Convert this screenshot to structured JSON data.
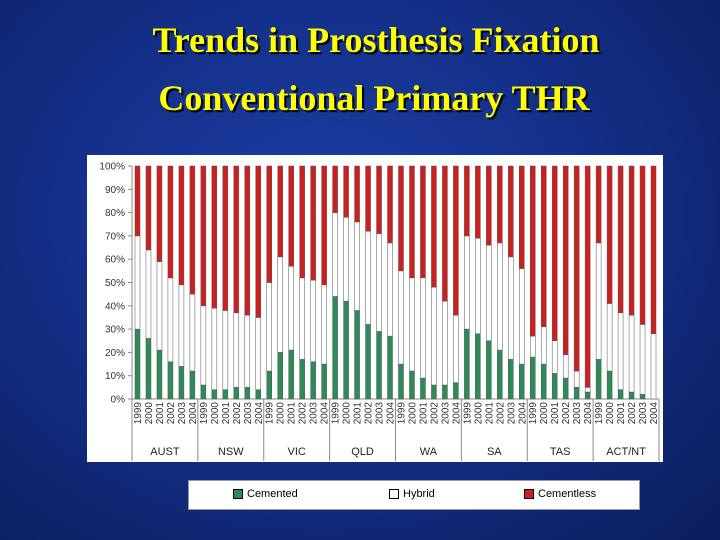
{
  "slide": {
    "title_line1": "Trends in Prosthesis Fixation",
    "title_line2": "Conventional Primary THR"
  },
  "chart_data": {
    "type": "bar",
    "stacked": true,
    "percent": true,
    "title": "",
    "xlabel": "",
    "ylabel": "",
    "ylim": [
      0,
      100
    ],
    "yticks": [
      "0%",
      "10%",
      "20%",
      "30%",
      "40%",
      "50%",
      "60%",
      "70%",
      "80%",
      "90%",
      "100%"
    ],
    "years": [
      "1999",
      "2000",
      "2001",
      "2002",
      "2003",
      "2004"
    ],
    "groups": [
      {
        "name": "AUST",
        "cemented": [
          30,
          26,
          21,
          16,
          14,
          12
        ],
        "hybrid": [
          40,
          38,
          38,
          36,
          35,
          33
        ],
        "cementless": [
          30,
          36,
          41,
          48,
          51,
          55
        ]
      },
      {
        "name": "NSW",
        "cemented": [
          6,
          4,
          4,
          5,
          5,
          4
        ],
        "hybrid": [
          34,
          35,
          34,
          32,
          31,
          31
        ],
        "cementless": [
          60,
          61,
          62,
          63,
          64,
          65
        ]
      },
      {
        "name": "VIC",
        "cemented": [
          12,
          20,
          21,
          17,
          16,
          15
        ],
        "hybrid": [
          38,
          41,
          36,
          35,
          35,
          34
        ],
        "cementless": [
          50,
          39,
          43,
          48,
          49,
          51
        ]
      },
      {
        "name": "QLD",
        "cemented": [
          44,
          42,
          38,
          32,
          29,
          27
        ],
        "hybrid": [
          36,
          36,
          38,
          40,
          42,
          40
        ],
        "cementless": [
          20,
          22,
          24,
          28,
          29,
          33
        ]
      },
      {
        "name": "WA",
        "cemented": [
          15,
          12,
          9,
          6,
          6,
          7
        ],
        "hybrid": [
          40,
          40,
          43,
          42,
          36,
          29
        ],
        "cementless": [
          45,
          48,
          48,
          52,
          58,
          64
        ]
      },
      {
        "name": "SA",
        "cemented": [
          30,
          28,
          25,
          21,
          17,
          15
        ],
        "hybrid": [
          40,
          41,
          41,
          46,
          44,
          41
        ],
        "cementless": [
          30,
          31,
          34,
          33,
          39,
          44
        ]
      },
      {
        "name": "TAS",
        "cemented": [
          18,
          15,
          11,
          9,
          5,
          3
        ],
        "hybrid": [
          9,
          16,
          14,
          10,
          7,
          2
        ],
        "cementless": [
          73,
          69,
          75,
          81,
          88,
          95
        ]
      },
      {
        "name": "ACT/NT",
        "cemented": [
          17,
          12,
          4,
          3,
          2,
          0
        ],
        "hybrid": [
          50,
          29,
          33,
          33,
          30,
          28
        ],
        "cementless": [
          33,
          59,
          63,
          64,
          68,
          72
        ]
      }
    ],
    "series": [
      {
        "name": "Cemented",
        "color": "#2e8b57"
      },
      {
        "name": "Hybrid",
        "color": "#ffffff"
      },
      {
        "name": "Cementless",
        "color": "#cc1f1f"
      }
    ],
    "legend_position": "bottom",
    "grid": false
  }
}
